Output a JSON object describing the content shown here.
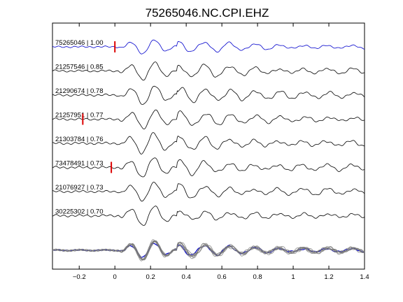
{
  "chart_data": {
    "type": "line",
    "title": "75265046.NC.CPI.EHZ",
    "xlabel": "",
    "ylabel": "",
    "xlim": [
      -0.35,
      1.4
    ],
    "xticks": [
      -0.2,
      0,
      0.2,
      0.4,
      0.6,
      0.8,
      1,
      1.2,
      1.4
    ],
    "xtick_labels": [
      "−0.2",
      "0",
      "0.2",
      "0.4",
      "0.6",
      "0.8",
      "1",
      "1.2",
      "1.4"
    ],
    "grid": false,
    "legend": "none",
    "colors": {
      "reference": "#0000cc",
      "trace": "#000000",
      "pick": "#dd0000",
      "stack": "#777777"
    },
    "traces": [
      {
        "label": "75265046 | 1.00",
        "cc": 1.0,
        "reference": true,
        "pick_x": 0.0,
        "amp": 1.0,
        "seed": 1
      },
      {
        "label": "21257546 | 0.85",
        "cc": 0.85,
        "reference": false,
        "pick_x": null,
        "amp": 1.25,
        "seed": 2
      },
      {
        "label": "21290674 | 0.78",
        "cc": 0.78,
        "reference": false,
        "pick_x": null,
        "amp": 1.35,
        "seed": 3
      },
      {
        "label": "21257951 | 0.77",
        "cc": 0.77,
        "reference": false,
        "pick_x": -0.18,
        "amp": 1.3,
        "seed": 4
      },
      {
        "label": "21303784 | 0.76",
        "cc": 0.76,
        "reference": false,
        "pick_x": null,
        "amp": 1.45,
        "seed": 5
      },
      {
        "label": "73478491 | 0.73",
        "cc": 0.73,
        "reference": false,
        "pick_x": -0.02,
        "amp": 1.4,
        "seed": 6
      },
      {
        "label": "21076927 | 0.73",
        "cc": 0.73,
        "reference": false,
        "pick_x": null,
        "amp": 1.3,
        "seed": 7
      },
      {
        "label": "30225302 | 0.70",
        "cc": 0.7,
        "reference": false,
        "pick_x": null,
        "amp": 1.4,
        "seed": 8
      }
    ],
    "stack": {
      "label": "",
      "overlay_of_all_traces": true
    }
  }
}
